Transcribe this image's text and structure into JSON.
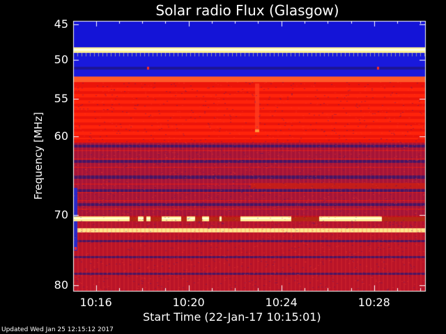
{
  "chart_data": {
    "type": "heatmap",
    "title": "Solar radio Flux (Glasgow)",
    "ylabel": "Frequency [MHz]",
    "xlabel": "Start Time (22-Jan-17 10:15:01)",
    "y_ticks": [
      "45",
      "50",
      "55",
      "60",
      "70",
      "80"
    ],
    "y_tick_values": [
      45,
      50,
      55,
      60,
      70,
      80
    ],
    "x_ticks": [
      "10:16",
      "10:20",
      "10:24",
      "10:28"
    ],
    "x_tick_minutes": [
      16,
      20,
      24,
      28
    ],
    "xlim_minutes": [
      15.02,
      30.2
    ],
    "ylim_mhz": [
      45,
      80
    ],
    "y_scale": "non-linear (frequency axis expands toward low MHz)",
    "bands": [
      {
        "from_mhz": 45,
        "to_mhz": 48.5,
        "level": "low"
      },
      {
        "from_mhz": 48.5,
        "to_mhz": 49.2,
        "level": "very high"
      },
      {
        "from_mhz": 49.2,
        "to_mhz": 52.5,
        "level": "low"
      },
      {
        "from_mhz": 52.5,
        "to_mhz": 53.2,
        "level": "high"
      },
      {
        "from_mhz": 53.2,
        "to_mhz": 60.5,
        "level": "medium-high"
      },
      {
        "from_mhz": 60.5,
        "to_mhz": 69.5,
        "level": "medium"
      },
      {
        "from_mhz": 69.5,
        "to_mhz": 70.5,
        "level": "very high (intermittent)"
      },
      {
        "from_mhz": 70.5,
        "to_mhz": 71.5,
        "level": "medium"
      },
      {
        "from_mhz": 71.5,
        "to_mhz": 72.0,
        "level": "very high"
      },
      {
        "from_mhz": 72.0,
        "to_mhz": 80,
        "level": "medium"
      }
    ],
    "colors": {
      "low": "#1a1adc",
      "medium": "#b4142d",
      "high": "#ff2000",
      "peak": "#ffffa0"
    }
  },
  "footer": "Updated Wed Jan 25 12:15:12 2017"
}
